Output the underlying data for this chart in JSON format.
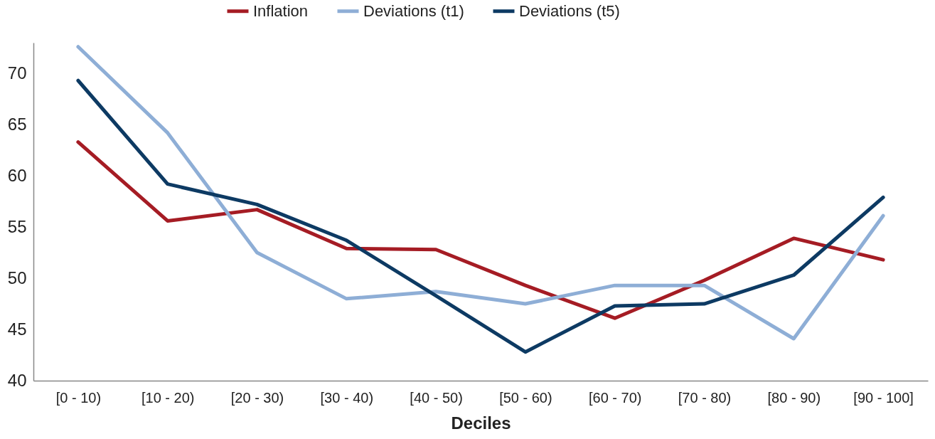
{
  "chart_data": {
    "type": "line",
    "xlabel": "Deciles",
    "categories": [
      "[0 - 10)",
      "[10 - 20)",
      "[20 - 30)",
      "[30 - 40)",
      "[40 - 50)",
      "[50 - 60)",
      "[60 - 70)",
      "[70 - 80)",
      "[80 - 90)",
      "[90 - 100]"
    ],
    "series": [
      {
        "name": "Inflation",
        "color": "#a51c24",
        "values": [
          63.3,
          55.6,
          56.7,
          52.9,
          52.8,
          49.3,
          46.1,
          49.8,
          53.9,
          51.8
        ]
      },
      {
        "name": "Deviations (t1)",
        "color": "#8eaed6",
        "values": [
          72.6,
          64.2,
          52.5,
          48.0,
          48.7,
          47.5,
          49.3,
          49.3,
          44.1,
          56.1
        ]
      },
      {
        "name": "Deviations (t5)",
        "color": "#0d3a63",
        "values": [
          69.3,
          59.2,
          57.2,
          53.7,
          48.3,
          42.8,
          47.3,
          47.5,
          50.3,
          57.9
        ]
      }
    ],
    "ylim": [
      40,
      73
    ],
    "yticks": [
      40,
      45,
      50,
      55,
      60,
      65,
      70
    ],
    "grid": false,
    "legend": "top",
    "marker": "none",
    "line_style": "solid"
  }
}
